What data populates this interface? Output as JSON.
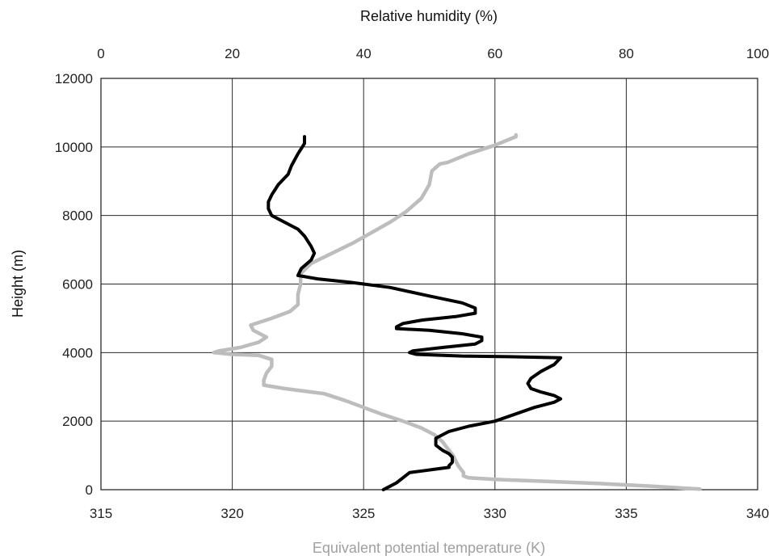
{
  "chart_data": {
    "type": "line",
    "title": "",
    "ylabel": "Height (m)",
    "top_xlabel": "Relative humidity (%)",
    "bottom_xlabel": "Equivalent potential temperature (K)",
    "ylim": [
      0,
      12000
    ],
    "yticks": [
      "0",
      "2000",
      "4000",
      "6000",
      "8000",
      "10000",
      "12000"
    ],
    "top_xlim": [
      0,
      100
    ],
    "top_xticks": [
      "0",
      "20",
      "40",
      "60",
      "80",
      "100"
    ],
    "bottom_xlim": [
      315,
      340
    ],
    "bottom_xticks": [
      "315",
      "320",
      "325",
      "330",
      "335",
      "340"
    ],
    "grid": true,
    "legend": "none",
    "colors": {
      "humidity": "#000000",
      "theta_e": "#bdbdbd",
      "grid": "#2a2a2a",
      "bottom_title": "#a0a0a0"
    },
    "series": [
      {
        "axis": "top",
        "color": "#000000",
        "points": [
          [
            43,
            0
          ],
          [
            44,
            100
          ],
          [
            45,
            200
          ],
          [
            46,
            350
          ],
          [
            47,
            500
          ],
          [
            49,
            550
          ],
          [
            51,
            600
          ],
          [
            53,
            650
          ],
          [
            53,
            700
          ],
          [
            53.5,
            800
          ],
          [
            53.5,
            950
          ],
          [
            53,
            1050
          ],
          [
            52,
            1150
          ],
          [
            51,
            1300
          ],
          [
            51,
            1500
          ],
          [
            53,
            1700
          ],
          [
            56,
            1850
          ],
          [
            60,
            2000
          ],
          [
            63,
            2200
          ],
          [
            66,
            2400
          ],
          [
            69,
            2550
          ],
          [
            70,
            2650
          ],
          [
            69,
            2750
          ],
          [
            67,
            2850
          ],
          [
            65.5,
            2950
          ],
          [
            65,
            3100
          ],
          [
            65.5,
            3250
          ],
          [
            67,
            3450
          ],
          [
            69,
            3650
          ],
          [
            70,
            3850
          ],
          [
            62,
            3880
          ],
          [
            55,
            3900
          ],
          [
            48,
            3950
          ],
          [
            47,
            4000
          ],
          [
            47.5,
            4050
          ],
          [
            52,
            4150
          ],
          [
            57,
            4250
          ],
          [
            58,
            4350
          ],
          [
            58,
            4450
          ],
          [
            55,
            4550
          ],
          [
            50,
            4650
          ],
          [
            45,
            4700
          ],
          [
            45,
            4750
          ],
          [
            46,
            4850
          ],
          [
            49,
            4950
          ],
          [
            54,
            5050
          ],
          [
            57,
            5150
          ],
          [
            57,
            5300
          ],
          [
            55,
            5450
          ],
          [
            50,
            5650
          ],
          [
            44,
            5900
          ],
          [
            38,
            6050
          ],
          [
            33,
            6150
          ],
          [
            30,
            6250
          ],
          [
            30.5,
            6450
          ],
          [
            32,
            6700
          ],
          [
            32.5,
            6900
          ],
          [
            32,
            7100
          ],
          [
            31,
            7400
          ],
          [
            30,
            7600
          ],
          [
            28,
            7800
          ],
          [
            26,
            8000
          ],
          [
            25.5,
            8200
          ],
          [
            25.5,
            8400
          ],
          [
            26,
            8600
          ],
          [
            27,
            8900
          ],
          [
            28.5,
            9200
          ],
          [
            29,
            9450
          ],
          [
            30,
            9800
          ],
          [
            31,
            10100
          ],
          [
            31,
            10300
          ]
        ]
      },
      {
        "axis": "bottom",
        "color": "#bdbdbd",
        "points": [
          [
            337.8,
            20
          ],
          [
            336,
            100
          ],
          [
            334,
            180
          ],
          [
            332,
            240
          ],
          [
            330,
            300
          ],
          [
            329,
            350
          ],
          [
            328.8,
            400
          ],
          [
            328.8,
            500
          ],
          [
            328.7,
            600
          ],
          [
            328.6,
            700
          ],
          [
            328.5,
            850
          ],
          [
            328.4,
            1000
          ],
          [
            328.2,
            1200
          ],
          [
            328,
            1400
          ],
          [
            327.7,
            1600
          ],
          [
            327.2,
            1800
          ],
          [
            326.5,
            2000
          ],
          [
            325.7,
            2200
          ],
          [
            325,
            2400
          ],
          [
            324.3,
            2600
          ],
          [
            323.5,
            2800
          ],
          [
            322,
            2950
          ],
          [
            321.2,
            3050
          ],
          [
            321.2,
            3200
          ],
          [
            321.3,
            3400
          ],
          [
            321.5,
            3600
          ],
          [
            321.5,
            3800
          ],
          [
            321,
            3920
          ],
          [
            320,
            3950
          ],
          [
            319.3,
            4000
          ],
          [
            319.5,
            4050
          ],
          [
            320.3,
            4150
          ],
          [
            321,
            4300
          ],
          [
            321.3,
            4450
          ],
          [
            320.8,
            4650
          ],
          [
            320.7,
            4800
          ],
          [
            321.5,
            5000
          ],
          [
            322.2,
            5200
          ],
          [
            322.5,
            5400
          ],
          [
            322.5,
            5700
          ],
          [
            322.6,
            6000
          ],
          [
            322.6,
            6300
          ],
          [
            323,
            6600
          ],
          [
            323.8,
            6900
          ],
          [
            324.6,
            7200
          ],
          [
            325.3,
            7500
          ],
          [
            326,
            7800
          ],
          [
            326.6,
            8100
          ],
          [
            327.2,
            8500
          ],
          [
            327.5,
            8900
          ],
          [
            327.6,
            9300
          ],
          [
            327.9,
            9500
          ],
          [
            328.2,
            9550
          ],
          [
            329,
            9800
          ],
          [
            330,
            10050
          ],
          [
            330.8,
            10300
          ],
          [
            330.8,
            10350
          ]
        ]
      }
    ]
  }
}
